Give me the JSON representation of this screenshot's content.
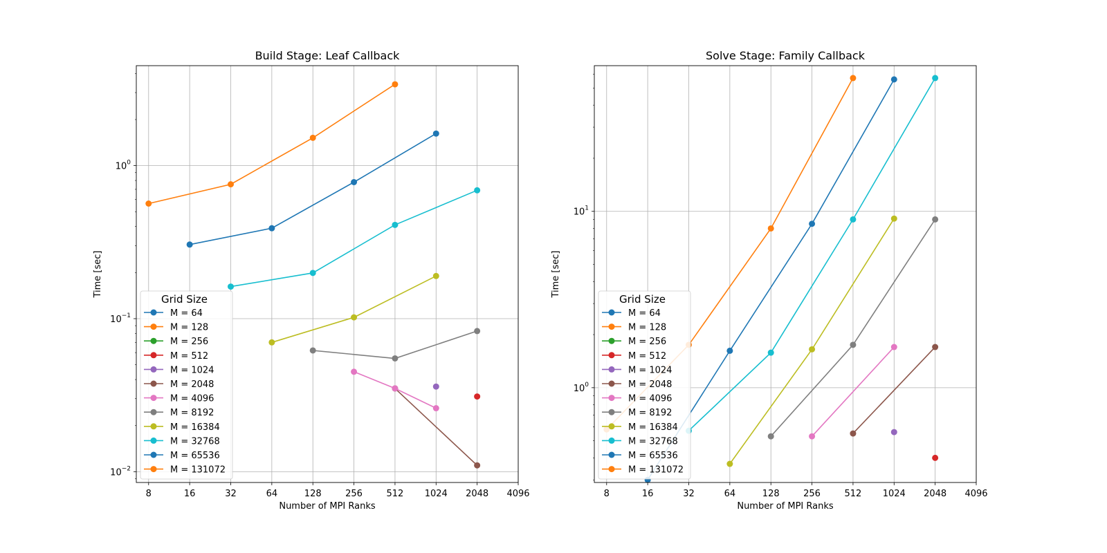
{
  "colors": {
    "M = 64": "#1f77b4",
    "M = 128": "#ff7f0e",
    "M = 256": "#2ca02c",
    "M = 512": "#d62728",
    "M = 1024": "#9467bd",
    "M = 2048": "#8c564b",
    "M = 4096": "#e377c2",
    "M = 8192": "#7f7f7f",
    "M = 16384": "#bcbd22",
    "M = 32768": "#17becf",
    "M = 65536": "#1f77b4",
    "M = 131072": "#ff7f0e"
  },
  "chart_data": [
    {
      "type": "line",
      "title": "Build Stage: Leaf Callback",
      "xlabel": "Number of MPI Ranks",
      "ylabel": "Time [sec]",
      "xscale": "log2",
      "yscale": "log10",
      "xlim": [
        6.5,
        4096
      ],
      "ylim": [
        0.0085,
        4.5
      ],
      "xticks": [
        8,
        16,
        32,
        64,
        128,
        256,
        512,
        1024,
        2048,
        4096
      ],
      "xtick_labels": [
        "8",
        "16",
        "32",
        "64",
        "128",
        "256",
        "512",
        "1024",
        "2048",
        "4096"
      ],
      "yticks": [
        {
          "value": 0.01,
          "base": "10",
          "exp": "−2"
        },
        {
          "value": 0.1,
          "base": "10",
          "exp": "−1"
        },
        {
          "value": 1,
          "base": "10",
          "exp": "0"
        }
      ],
      "grid": true,
      "legend_title": "Grid Size",
      "legend_position": "lower-left",
      "series": [
        {
          "name": "M = 64",
          "x": [],
          "y": []
        },
        {
          "name": "M = 128",
          "x": [],
          "y": []
        },
        {
          "name": "M = 256",
          "x": [],
          "y": []
        },
        {
          "name": "M = 512",
          "x": [
            2048
          ],
          "y": [
            0.031
          ]
        },
        {
          "name": "M = 1024",
          "x": [
            1024
          ],
          "y": [
            0.036
          ]
        },
        {
          "name": "M = 2048",
          "x": [
            512,
            2048
          ],
          "y": [
            0.035,
            0.011
          ]
        },
        {
          "name": "M = 4096",
          "x": [
            256,
            512,
            1024
          ],
          "y": [
            0.045,
            0.035,
            0.026
          ]
        },
        {
          "name": "M = 8192",
          "x": [
            128,
            512,
            2048
          ],
          "y": [
            0.062,
            0.055,
            0.083
          ]
        },
        {
          "name": "M = 16384",
          "x": [
            64,
            256,
            1024
          ],
          "y": [
            0.07,
            0.102,
            0.19
          ]
        },
        {
          "name": "M = 32768",
          "x": [
            32,
            128,
            512,
            2048
          ],
          "y": [
            0.162,
            0.199,
            0.41,
            0.69
          ]
        },
        {
          "name": "M = 65536",
          "x": [
            16,
            64,
            256,
            1024
          ],
          "y": [
            0.305,
            0.39,
            0.78,
            1.62
          ]
        },
        {
          "name": "M = 131072",
          "x": [
            8,
            32,
            128,
            512
          ],
          "y": [
            0.565,
            0.755,
            1.52,
            3.4
          ]
        }
      ]
    },
    {
      "type": "line",
      "title": "Solve Stage: Family Callback",
      "xlabel": "Number of MPI Ranks",
      "ylabel": "Time [sec]",
      "xscale": "log2",
      "yscale": "log10",
      "xlim": [
        6.5,
        4096
      ],
      "ylim": [
        0.29,
        67
      ],
      "xticks": [
        8,
        16,
        32,
        64,
        128,
        256,
        512,
        1024,
        2048,
        4096
      ],
      "xtick_labels": [
        "8",
        "16",
        "32",
        "64",
        "128",
        "256",
        "512",
        "1024",
        "2048",
        "4096"
      ],
      "yticks": [
        {
          "value": 1,
          "base": "10",
          "exp": "0"
        },
        {
          "value": 10,
          "base": "10",
          "exp": "1"
        }
      ],
      "grid": true,
      "legend_title": "Grid Size",
      "legend_position": "lower-left",
      "series": [
        {
          "name": "M = 64",
          "x": [],
          "y": []
        },
        {
          "name": "M = 128",
          "x": [],
          "y": []
        },
        {
          "name": "M = 256",
          "x": [],
          "y": []
        },
        {
          "name": "M = 512",
          "x": [
            2048
          ],
          "y": [
            0.4
          ]
        },
        {
          "name": "M = 1024",
          "x": [
            1024
          ],
          "y": [
            0.56
          ]
        },
        {
          "name": "M = 2048",
          "x": [
            512,
            2048
          ],
          "y": [
            0.55,
            1.7
          ]
        },
        {
          "name": "M = 4096",
          "x": [
            256,
            1024
          ],
          "y": [
            0.53,
            1.7
          ]
        },
        {
          "name": "M = 8192",
          "x": [
            128,
            512,
            2048
          ],
          "y": [
            0.53,
            1.75,
            9.0
          ]
        },
        {
          "name": "M = 16384",
          "x": [
            64,
            256,
            1024
          ],
          "y": [
            0.37,
            1.65,
            9.1
          ]
        },
        {
          "name": "M = 32768",
          "x": [
            32,
            128,
            512,
            2048
          ],
          "y": [
            0.57,
            1.58,
            9.0,
            57
          ]
        },
        {
          "name": "M = 65536",
          "x": [
            16,
            64,
            256,
            1024
          ],
          "y": [
            0.3,
            1.62,
            8.5,
            56
          ]
        },
        {
          "name": "M = 131072",
          "x": [
            8,
            32,
            128,
            512
          ],
          "y": [
            0.58,
            1.75,
            8.0,
            57
          ]
        }
      ]
    }
  ]
}
